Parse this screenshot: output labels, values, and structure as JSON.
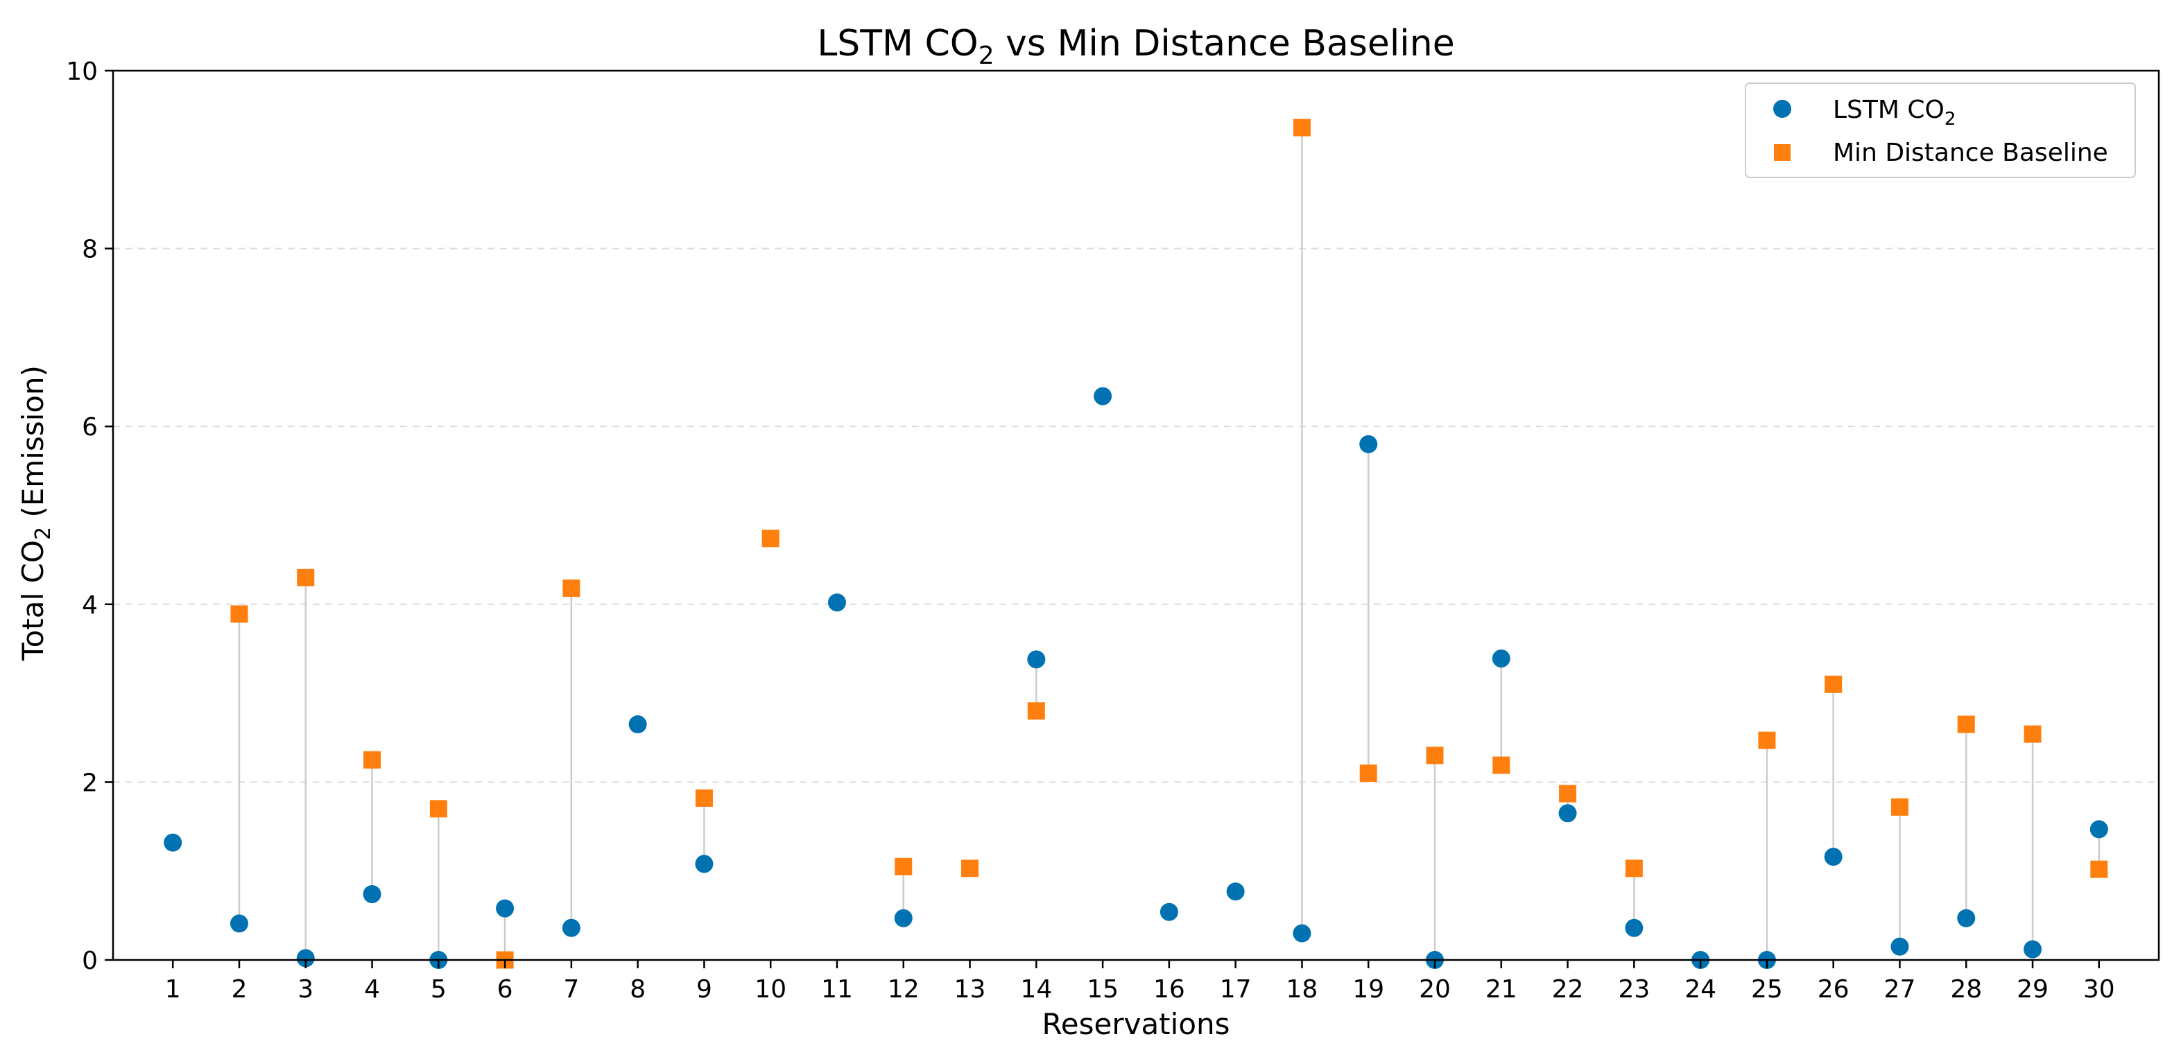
{
  "chart_data": {
    "type": "scatter",
    "title": "LSTM CO",
    "title_sub": "2",
    "title_suffix": " vs Min Distance Baseline",
    "xlabel": "Reservations",
    "ylabel_prefix": "Total CO",
    "ylabel_sub": "2",
    "ylabel_suffix": " (Emission)",
    "ylim": [
      0,
      10
    ],
    "yticks": [
      0,
      2,
      4,
      6,
      8,
      10
    ],
    "x": [
      1,
      2,
      3,
      4,
      5,
      6,
      7,
      8,
      9,
      10,
      11,
      12,
      13,
      14,
      15,
      16,
      17,
      18,
      19,
      20,
      21,
      22,
      23,
      24,
      25,
      26,
      27,
      28,
      29,
      30
    ],
    "grid": "horizontal dashed",
    "legend_position": "top-right",
    "series": [
      {
        "name": "LSTM CO",
        "name_sub": "2",
        "marker": "circle",
        "color": "#0072B2",
        "values": [
          1.32,
          0.41,
          0.02,
          0.74,
          0.0,
          0.58,
          0.36,
          2.65,
          1.08,
          null,
          4.02,
          0.47,
          null,
          3.38,
          6.34,
          0.54,
          0.77,
          0.3,
          5.8,
          0.0,
          3.39,
          1.65,
          0.36,
          0.0,
          0.0,
          1.16,
          0.15,
          0.47,
          0.12,
          1.47
        ]
      },
      {
        "name": "Min Distance Baseline",
        "marker": "square",
        "color": "#FF7F0E",
        "values": [
          null,
          3.89,
          4.3,
          2.25,
          1.7,
          0.0,
          4.18,
          null,
          1.82,
          4.74,
          null,
          1.05,
          1.03,
          2.8,
          null,
          null,
          null,
          9.36,
          2.1,
          2.3,
          2.19,
          1.87,
          1.03,
          null,
          2.47,
          3.1,
          1.72,
          2.65,
          2.54,
          1.02
        ]
      }
    ]
  }
}
